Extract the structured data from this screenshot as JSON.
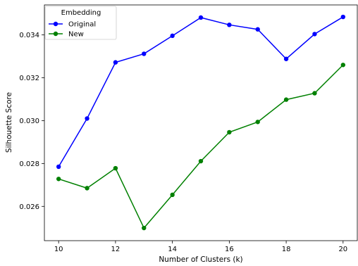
{
  "chart_data": {
    "type": "line",
    "title": "",
    "xlabel": "Number of Clusters (k)",
    "ylabel": "Silhouette Score",
    "x": [
      10,
      11,
      12,
      13,
      14,
      15,
      16,
      17,
      18,
      19,
      20
    ],
    "xlim": [
      9.5,
      20.5
    ],
    "ylim": [
      0.0244,
      0.0354
    ],
    "xticks": [
      10,
      12,
      14,
      16,
      18,
      20
    ],
    "yticks": [
      0.026,
      0.028,
      0.03,
      0.032,
      0.034
    ],
    "ytick_labels": [
      "0.026",
      "0.028",
      "0.030",
      "0.032",
      "0.034"
    ],
    "grid": false,
    "legend": {
      "title": "Embedding",
      "placement": "top-left"
    },
    "series": [
      {
        "name": "Original",
        "color": "#0000ff",
        "values": [
          0.02785,
          0.0301,
          0.03272,
          0.03312,
          0.03396,
          0.03481,
          0.03447,
          0.03426,
          0.03288,
          0.03404,
          0.03484
        ]
      },
      {
        "name": "New",
        "color": "#008000",
        "values": [
          0.02728,
          0.02685,
          0.02778,
          0.02499,
          0.02654,
          0.02811,
          0.02946,
          0.02994,
          0.03098,
          0.03128,
          0.0326
        ]
      }
    ]
  }
}
